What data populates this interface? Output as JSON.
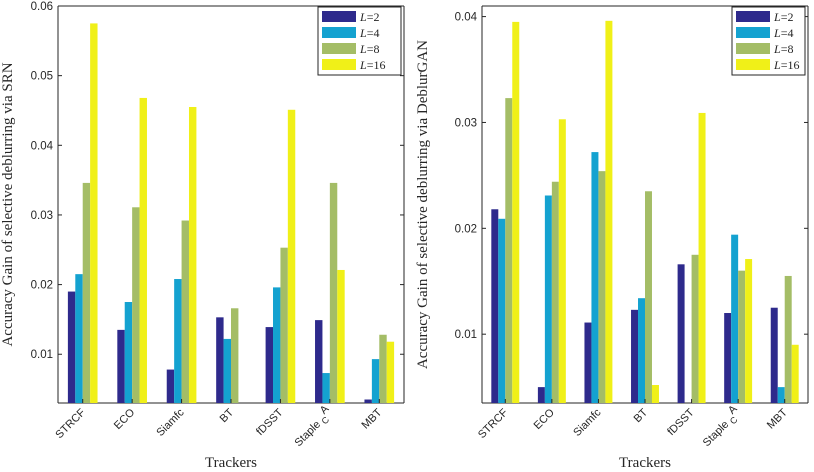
{
  "chart_data": [
    {
      "type": "bar",
      "title": "",
      "xlabel": "Trackers",
      "ylabel": "Accuracy Gain of selective deblurring via SRN",
      "categories": [
        "STRCF",
        "ECO",
        "Siamfc",
        "BT",
        "fDSST",
        "Staple_CA",
        "MBT"
      ],
      "category_labels": [
        {
          "main": "STRCF",
          "sub": "",
          "sup": ""
        },
        {
          "main": "ECO",
          "sub": "",
          "sup": ""
        },
        {
          "main": "Siamfc",
          "sub": "",
          "sup": ""
        },
        {
          "main": "BT",
          "sub": "",
          "sup": ""
        },
        {
          "main": "fDSST",
          "sub": "",
          "sup": ""
        },
        {
          "main": "Staple",
          "sub": "C",
          "sup": "A"
        },
        {
          "main": "MBT",
          "sub": "",
          "sup": ""
        }
      ],
      "ylim": [
        0.003,
        0.06
      ],
      "yticks": [
        0.01,
        0.02,
        0.03,
        0.04,
        0.05,
        0.06
      ],
      "ytick_labels": [
        "0.01",
        "0.02",
        "0.03",
        "0.04",
        "0.05",
        "0.06"
      ],
      "legend_position": "top-right",
      "series": [
        {
          "name": "L=2",
          "var": "L",
          "eq": "=2",
          "color": "#2e2a8c",
          "values": [
            0.019,
            0.0135,
            0.0078,
            0.0153,
            0.0139,
            0.0149,
            0.0035
          ]
        },
        {
          "name": "L=4",
          "var": "L",
          "eq": "=4",
          "color": "#14a2d0",
          "values": [
            0.0215,
            0.0175,
            0.0208,
            0.0122,
            0.0196,
            0.0073,
            0.0093
          ]
        },
        {
          "name": "L=8",
          "var": "L",
          "eq": "=8",
          "color": "#a4bd66",
          "values": [
            0.0346,
            0.0311,
            0.0292,
            0.0166,
            0.0253,
            0.0346,
            0.0128
          ]
        },
        {
          "name": "L=16",
          "var": "L",
          "eq": "=16",
          "color": "#f0f018",
          "values": [
            0.0575,
            0.0468,
            0.0455,
            null,
            0.0451,
            0.0221,
            0.0118
          ]
        }
      ]
    },
    {
      "type": "bar",
      "title": "",
      "xlabel": "Trackers",
      "ylabel": "Accuracy Gain of selective deblurring via DeblurGAN",
      "categories": [
        "STRCF",
        "ECO",
        "Siamfc",
        "BT",
        "fDSST",
        "Staple_CA",
        "MBT"
      ],
      "category_labels": [
        {
          "main": "STRCF",
          "sub": "",
          "sup": ""
        },
        {
          "main": "ECO",
          "sub": "",
          "sup": ""
        },
        {
          "main": "Siamfc",
          "sub": "",
          "sup": ""
        },
        {
          "main": "BT",
          "sub": "",
          "sup": ""
        },
        {
          "main": "fDSST",
          "sub": "",
          "sup": ""
        },
        {
          "main": "Staple",
          "sub": "C",
          "sup": "A"
        },
        {
          "main": "MBT",
          "sub": "",
          "sup": ""
        }
      ],
      "ylim": [
        0.0035,
        0.041
      ],
      "yticks": [
        0.01,
        0.02,
        0.03,
        0.04
      ],
      "ytick_labels": [
        "0.01",
        "0.02",
        "0.03",
        "0.04"
      ],
      "legend_position": "top-right",
      "series": [
        {
          "name": "L=2",
          "var": "L",
          "eq": "=2",
          "color": "#2e2a8c",
          "values": [
            0.0218,
            0.005,
            0.0111,
            0.0123,
            0.0166,
            0.012,
            0.0125
          ]
        },
        {
          "name": "L=4",
          "var": "L",
          "eq": "=4",
          "color": "#14a2d0",
          "values": [
            0.0209,
            0.0231,
            0.0272,
            0.0134,
            null,
            0.0194,
            0.005
          ]
        },
        {
          "name": "L=8",
          "var": "L",
          "eq": "=8",
          "color": "#a4bd66",
          "values": [
            0.0323,
            0.0244,
            0.0254,
            0.0235,
            0.0175,
            0.016,
            0.0155
          ]
        },
        {
          "name": "L=16",
          "var": "L",
          "eq": "=16",
          "color": "#f0f018",
          "values": [
            0.0395,
            0.0303,
            0.0396,
            0.0052,
            0.0309,
            0.0171,
            0.009
          ]
        }
      ]
    }
  ]
}
